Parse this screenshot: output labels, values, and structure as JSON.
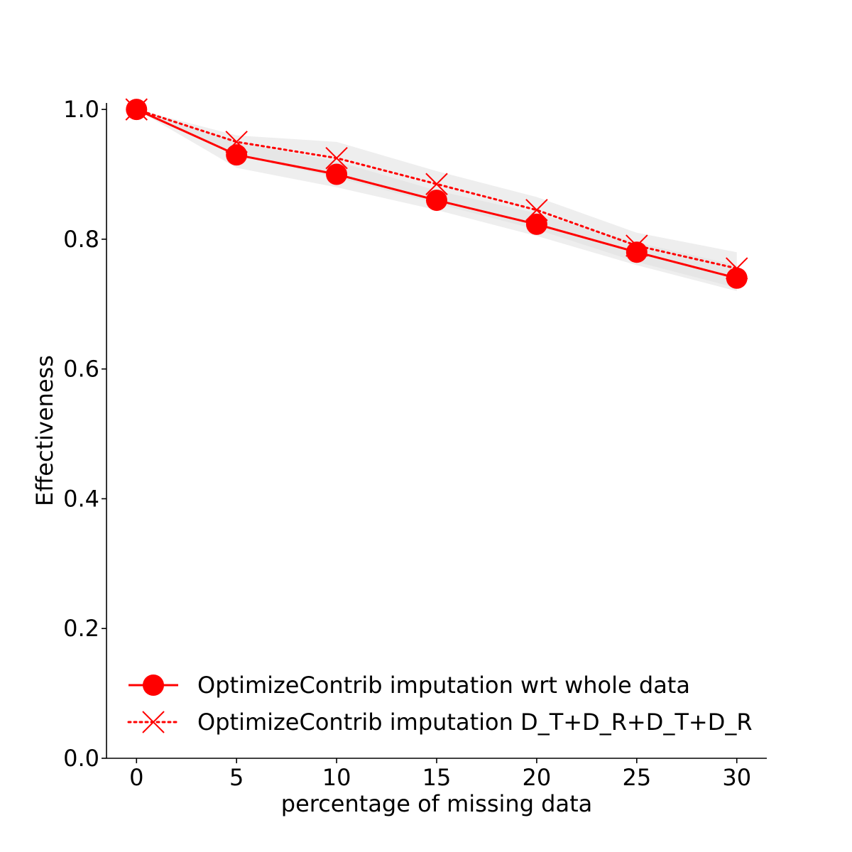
{
  "chart_data": {
    "type": "line",
    "x": [
      0,
      5,
      10,
      15,
      20,
      25,
      30
    ],
    "xlabel": "percentage of missing data",
    "ylabel": "Effectiveness",
    "xlim": [
      -1.5,
      31.5
    ],
    "ylim": [
      0.0,
      1.01
    ],
    "x_ticks": [
      0,
      5,
      10,
      15,
      20,
      25,
      30
    ],
    "y_ticks": [
      0.0,
      0.2,
      0.4,
      0.6,
      0.8,
      1.0
    ],
    "x_tick_labels": [
      "0",
      "5",
      "10",
      "15",
      "20",
      "25",
      "30"
    ],
    "y_tick_labels": [
      "0.0",
      "0.2",
      "0.4",
      "0.6",
      "0.8",
      "1.0"
    ],
    "grid": false,
    "legend_position": "bottom-left",
    "series": [
      {
        "name": "OptimizeContrib imputation wrt whole data",
        "values": [
          1.0,
          0.93,
          0.9,
          0.86,
          0.823,
          0.78,
          0.74
        ],
        "band_low": [
          1.0,
          0.91,
          0.88,
          0.845,
          0.805,
          0.76,
          0.72
        ],
        "band_high": [
          1.0,
          0.95,
          0.92,
          0.875,
          0.84,
          0.795,
          0.76
        ],
        "color": "#ff0000",
        "line_style": "solid",
        "marker": "circle"
      },
      {
        "name": "OptimizeContrib imputation D_T+D_R+D_T+D_R",
        "values": [
          1.0,
          0.95,
          0.925,
          0.885,
          0.845,
          0.79,
          0.755
        ],
        "band_low": [
          1.0,
          0.93,
          0.895,
          0.855,
          0.815,
          0.765,
          0.725
        ],
        "band_high": [
          1.0,
          0.96,
          0.95,
          0.905,
          0.865,
          0.81,
          0.78
        ],
        "color": "#ff0000",
        "line_style": "dotted",
        "marker": "x"
      }
    ],
    "band_color": "#e0e0e0"
  }
}
